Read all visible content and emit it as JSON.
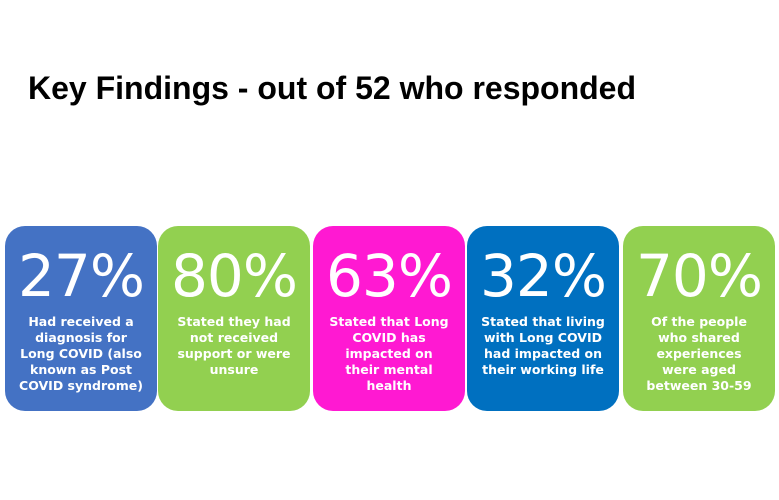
{
  "header": {
    "title": "Key Findings - out of 52 who responded"
  },
  "cards": [
    {
      "value": "27%",
      "color": "#4472c4",
      "lines": [
        "Had received a",
        "diagnosis for",
        "Long COVID (also",
        "known as Post",
        "COVID syndrome)"
      ]
    },
    {
      "value": "80%",
      "color": "#92d050",
      "lines": [
        "Stated they had",
        "not received",
        "support or were",
        "unsure"
      ]
    },
    {
      "value": "63%",
      "color": "#ff19d2",
      "lines": [
        "Stated that Long",
        "COVID has",
        "impacted on",
        "their mental",
        "health"
      ]
    },
    {
      "value": "32%",
      "color": "#0070c0",
      "lines": [
        "Stated that living",
        "with Long COVID",
        "had impacted on",
        "their working life"
      ]
    },
    {
      "value": "70%",
      "color": "#92d050",
      "lines": [
        "Of the people",
        "who shared",
        "experiences",
        "were aged",
        "between 30-59"
      ]
    }
  ]
}
